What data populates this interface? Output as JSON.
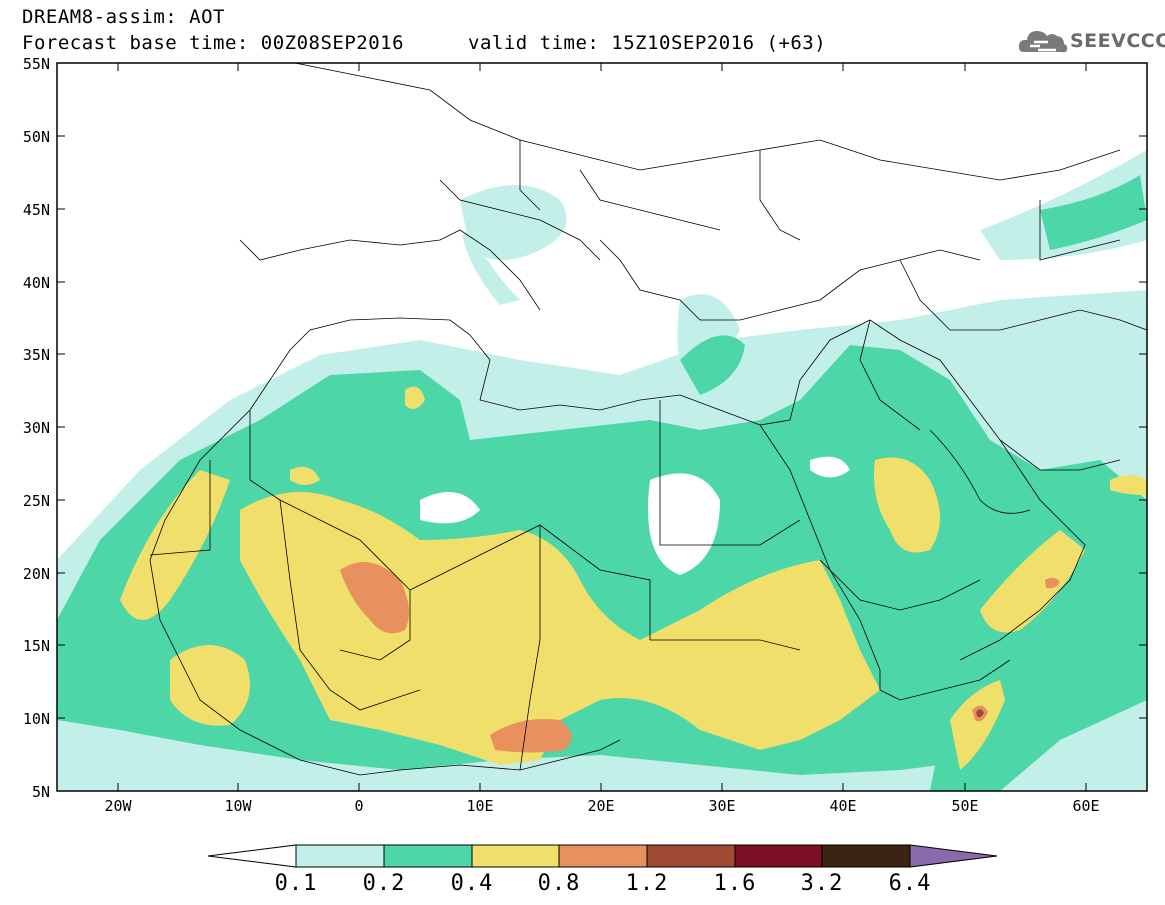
{
  "header": {
    "line1": "DREAM8-assim: AOT",
    "line2": "Forecast base time: 00Z08SEP2016",
    "line3": "valid time: 15Z10SEP2016 (+63)"
  },
  "logo": {
    "text": "SEEVCCC",
    "icon": "cloud-logo-icon"
  },
  "map": {
    "lon_range": [
      -25,
      65
    ],
    "lat_range": [
      5,
      55
    ],
    "lat_labels": [
      "55N",
      "50N",
      "45N",
      "40N",
      "35N",
      "30N",
      "25N",
      "20N",
      "15N",
      "10N",
      "5N"
    ],
    "lon_labels": [
      "20W",
      "10W",
      "0",
      "10E",
      "20E",
      "30E",
      "40E",
      "50E",
      "60E"
    ]
  },
  "colorbar": {
    "labels": [
      "0.1",
      "0.2",
      "0.4",
      "0.8",
      "1.2",
      "1.6",
      "3.2",
      "6.4"
    ],
    "colors": [
      "#ffffff",
      "#c2efe8",
      "#4dd6a8",
      "#f1df6c",
      "#e8915f",
      "#a04a33",
      "#7c0f24",
      "#3b2512",
      "#8a6aaa"
    ]
  }
}
